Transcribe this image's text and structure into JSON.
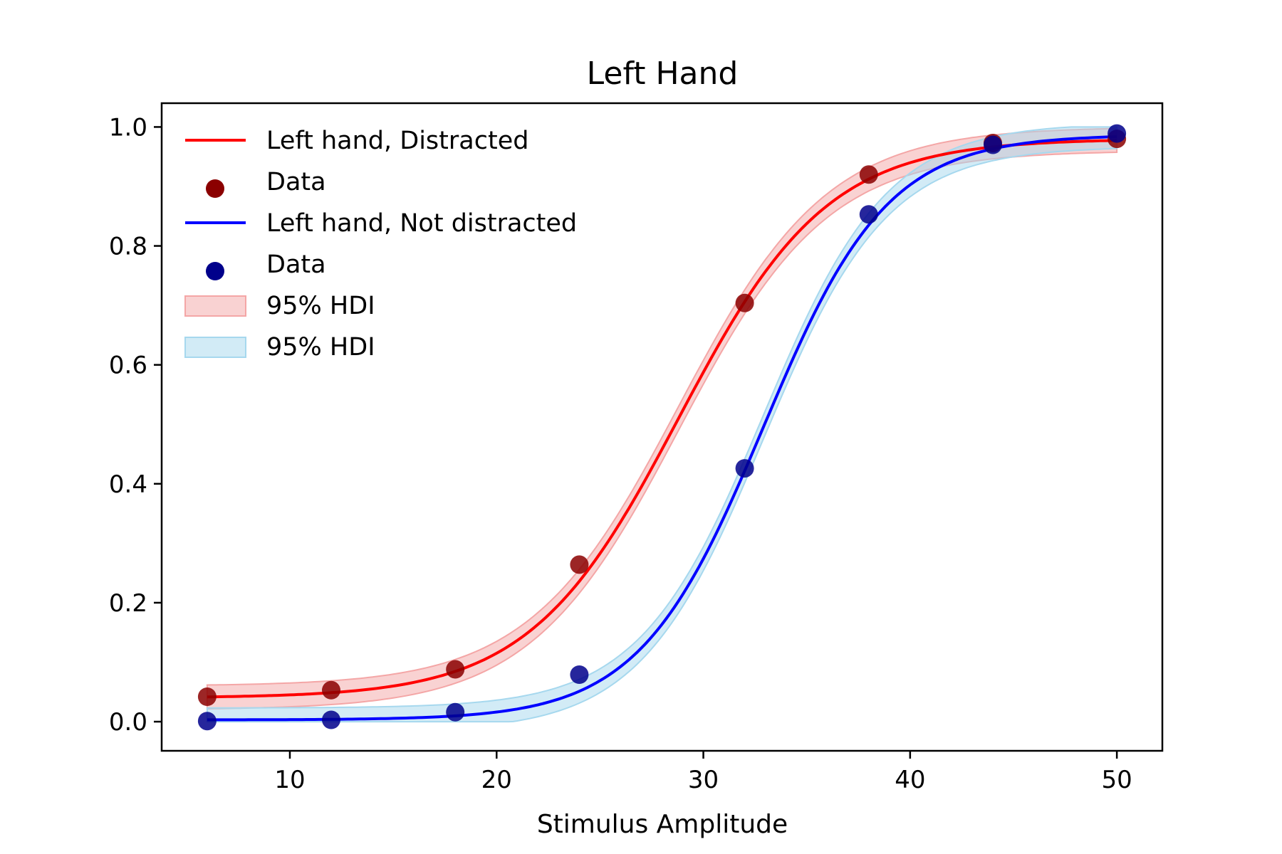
{
  "chart_data": {
    "type": "line",
    "title": "Left Hand",
    "xlabel": "Stimulus Amplitude",
    "ylabel": "",
    "xlim": [
      3.8,
      52.2
    ],
    "ylim": [
      -0.049,
      1.04
    ],
    "xticks": [
      10,
      20,
      30,
      40,
      50
    ],
    "yticks": [
      0.0,
      0.2,
      0.4,
      0.6,
      0.8,
      1.0
    ],
    "grid": false,
    "legend_position": "top-left",
    "series": [
      {
        "name": "Left hand, Distracted",
        "kind": "fit",
        "color": "#ff0000",
        "band_color": "#f4a6a6",
        "params": {
          "gamma": 0.04,
          "lambda": 0.02,
          "mu": 28.8,
          "s": 3.6
        },
        "band_halfwidth": 0.02
      },
      {
        "name": "Left hand, Not distracted",
        "kind": "fit",
        "color": "#0000ff",
        "band_color": "#a6d8ee",
        "params": {
          "gamma": 0.003,
          "lambda": 0.013,
          "mu": 32.9,
          "s": 3.0
        },
        "band_halfwidth": 0.02
      }
    ],
    "points": [
      {
        "name": "Data",
        "color": "#8b0000",
        "x": [
          6,
          12,
          18,
          24,
          32,
          38,
          44,
          50
        ],
        "y": [
          0.042,
          0.053,
          0.088,
          0.264,
          0.704,
          0.92,
          0.973,
          0.98
        ]
      },
      {
        "name": "Data",
        "color": "#00008b",
        "x": [
          6,
          12,
          18,
          24,
          32,
          38,
          44,
          50
        ],
        "y": [
          0.001,
          0.003,
          0.016,
          0.079,
          0.426,
          0.853,
          0.97,
          0.989
        ]
      }
    ],
    "legend": [
      {
        "label": "Left hand, Distracted",
        "kind": "line",
        "color": "#ff0000"
      },
      {
        "label": "Data",
        "kind": "marker",
        "color": "#8b0000"
      },
      {
        "label": "Left hand, Not distracted",
        "kind": "line",
        "color": "#0000ff"
      },
      {
        "label": "Data",
        "kind": "marker",
        "color": "#00008b"
      },
      {
        "label": "95% HDI",
        "kind": "patch",
        "color": "#f4a6a6"
      },
      {
        "label": "95% HDI",
        "kind": "patch",
        "color": "#a6d8ee"
      }
    ]
  }
}
